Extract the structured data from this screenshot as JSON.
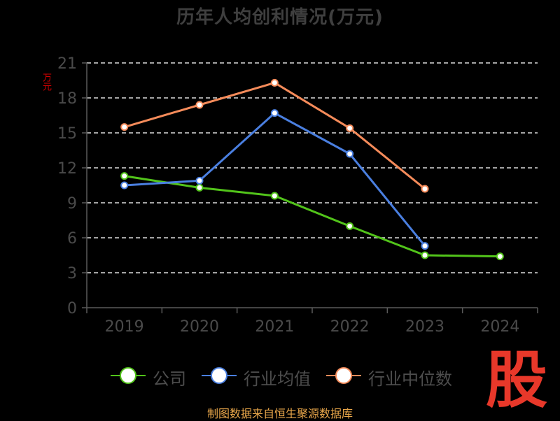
{
  "chart_data": {
    "type": "line",
    "title": "历年人均创利情况(万元)",
    "ylabel": "万元",
    "xlabel": "",
    "categories": [
      "2019",
      "2020",
      "2021",
      "2022",
      "2023",
      "2024"
    ],
    "ylim": [
      0,
      21
    ],
    "yticks": [
      0,
      3,
      6,
      9,
      12,
      15,
      18,
      21
    ],
    "grid": "horizontal dashed",
    "legend_position": "bottom",
    "series": [
      {
        "name": "公司",
        "color": "#52c41a",
        "values": [
          11.3,
          10.3,
          9.6,
          7.0,
          4.5,
          4.4
        ]
      },
      {
        "name": "行业均值",
        "color": "#4a7fe0",
        "values": [
          10.5,
          10.9,
          16.7,
          13.2,
          5.3,
          null
        ]
      },
      {
        "name": "行业中位数",
        "color": "#f58b5a",
        "values": [
          15.5,
          17.4,
          19.3,
          15.4,
          10.2,
          null
        ]
      }
    ]
  },
  "source_text": "制图数据来自恒生聚源数据库",
  "logo_text": "股"
}
